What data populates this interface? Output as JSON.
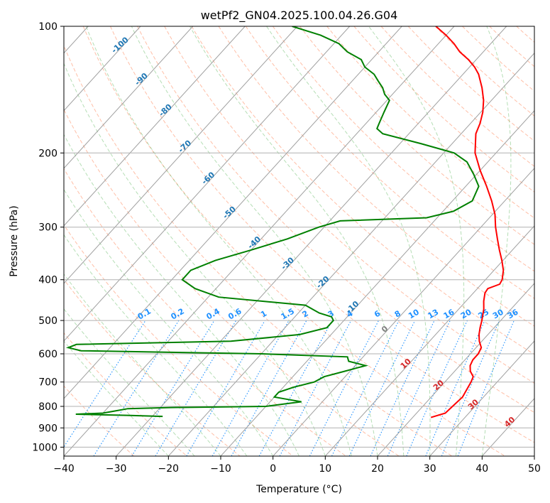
{
  "chart_data": {
    "type": "line",
    "subtype": "skew-t log-p diagram",
    "title": "wetPf2_GN04.2025.100.04.26.G04",
    "xlabel": "Temperature (°C)",
    "ylabel": "Pressure (hPa)",
    "xlim": [
      -40,
      50
    ],
    "ylim": [
      1050,
      100
    ],
    "y_scale": "log",
    "x_ticks": [
      "−40",
      "−30",
      "−20",
      "−10",
      "0",
      "10",
      "20",
      "30",
      "40",
      "50"
    ],
    "y_ticks": [
      "100",
      "200",
      "300",
      "400",
      "500",
      "600",
      "700",
      "800",
      "900",
      "1000"
    ],
    "grid": true,
    "colors": {
      "temperature": "#ff0000",
      "dewpoint": "#008000",
      "isotherm_labels": "#1f77b4",
      "mixing_ratio": "#1e90ff",
      "dry_adiabat": "#ff7f50",
      "moist_adiabat": "#2ca02c",
      "warm_isotherm_labels": "#d62728",
      "zero_isotherm_label": "#808080"
    },
    "isotherm_labels_cold": [
      "-100",
      "-90",
      "-80",
      "-70",
      "-60",
      "-50",
      "-40",
      "-30",
      "-20",
      "-10"
    ],
    "isotherm_labels_warm": [
      "0",
      "10",
      "20",
      "30",
      "40"
    ],
    "mixing_ratio_labels": [
      "0.1",
      "0.2",
      "0.4",
      "0.6",
      "1",
      "1.5",
      "2",
      "3",
      "4",
      "6",
      "8",
      "10",
      "13",
      "16",
      "20",
      "25",
      "30",
      "36"
    ],
    "series": [
      {
        "role": "temperature",
        "points": [
          [
            1000,
            null
          ],
          [
            850,
            23.5
          ],
          [
            830,
            25.5
          ],
          [
            800,
            25.7
          ],
          [
            760,
            26.0
          ],
          [
            700,
            25.0
          ],
          [
            680,
            24.5
          ],
          [
            660,
            23.0
          ],
          [
            640,
            22.0
          ],
          [
            620,
            21.5
          ],
          [
            600,
            21.5
          ],
          [
            580,
            21.0
          ],
          [
            560,
            19.5
          ],
          [
            540,
            18.3
          ],
          [
            520,
            17.3
          ],
          [
            500,
            16.4
          ],
          [
            470,
            14.8
          ],
          [
            450,
            13.4
          ],
          [
            430,
            12.2
          ],
          [
            420,
            12.0
          ],
          [
            410,
            13.5
          ],
          [
            400,
            13.2
          ],
          [
            380,
            11.8
          ],
          [
            360,
            9.8
          ],
          [
            340,
            7.5
          ],
          [
            320,
            5.2
          ],
          [
            300,
            2.8
          ],
          [
            280,
            0.5
          ],
          [
            260,
            -2.5
          ],
          [
            240,
            -6.0
          ],
          [
            220,
            -10.0
          ],
          [
            200,
            -14.0
          ],
          [
            180,
            -17.2
          ],
          [
            170,
            -18.2
          ],
          [
            160,
            -19.6
          ],
          [
            150,
            -21.5
          ],
          [
            140,
            -24.0
          ],
          [
            130,
            -27.0
          ],
          [
            125,
            -29.0
          ],
          [
            120,
            -31.5
          ],
          [
            115,
            -34.5
          ],
          [
            110,
            -37.0
          ],
          [
            105,
            -40.0
          ],
          [
            100,
            -43.5
          ]
        ]
      },
      {
        "role": "dewpoint",
        "points": [
          [
            845,
            -28.0
          ],
          [
            840,
            -35.0
          ],
          [
            835,
            -45.0
          ],
          [
            830,
            -40.0
          ],
          [
            820,
            -38.0
          ],
          [
            810,
            -36.0
          ],
          [
            805,
            -28.0
          ],
          [
            800,
            -10.0
          ],
          [
            780,
            -4.0
          ],
          [
            770,
            -7.0
          ],
          [
            760,
            -10.0
          ],
          [
            740,
            -10.0
          ],
          [
            720,
            -8.0
          ],
          [
            700,
            -5.0
          ],
          [
            680,
            -4.0
          ],
          [
            660,
            -1.0
          ],
          [
            640,
            2.0
          ],
          [
            625,
            -2.0
          ],
          [
            610,
            -3.0
          ],
          [
            600,
            -20.0
          ],
          [
            590,
            -55.0
          ],
          [
            580,
            -58.0
          ],
          [
            570,
            -57.0
          ],
          [
            560,
            -28.0
          ],
          [
            540,
            -16.0
          ],
          [
            520,
            -12.0
          ],
          [
            500,
            -12.0
          ],
          [
            490,
            -13.0
          ],
          [
            480,
            -16.0
          ],
          [
            460,
            -20.0
          ],
          [
            440,
            -38.0
          ],
          [
            420,
            -44.0
          ],
          [
            400,
            -48.0
          ],
          [
            380,
            -48.0
          ],
          [
            360,
            -45.0
          ],
          [
            340,
            -40.0
          ],
          [
            320,
            -35.0
          ],
          [
            300,
            -31.0
          ],
          [
            290,
            -28.0
          ],
          [
            285,
            -12.0
          ],
          [
            275,
            -8.0
          ],
          [
            260,
            -6.2
          ],
          [
            240,
            -7.5
          ],
          [
            225,
            -10.5
          ],
          [
            210,
            -14.0
          ],
          [
            200,
            -18.0
          ],
          [
            190,
            -26.0
          ],
          [
            180,
            -35.0
          ],
          [
            175,
            -37.0
          ],
          [
            170,
            -37.5
          ],
          [
            160,
            -38.5
          ],
          [
            150,
            -39.5
          ],
          [
            145,
            -41.5
          ],
          [
            140,
            -43.0
          ],
          [
            135,
            -45.0
          ],
          [
            130,
            -47.0
          ],
          [
            125,
            -50.0
          ],
          [
            120,
            -52.0
          ],
          [
            115,
            -56.0
          ],
          [
            110,
            -59.0
          ],
          [
            105,
            -64.0
          ],
          [
            100,
            -71.0
          ]
        ]
      }
    ]
  }
}
